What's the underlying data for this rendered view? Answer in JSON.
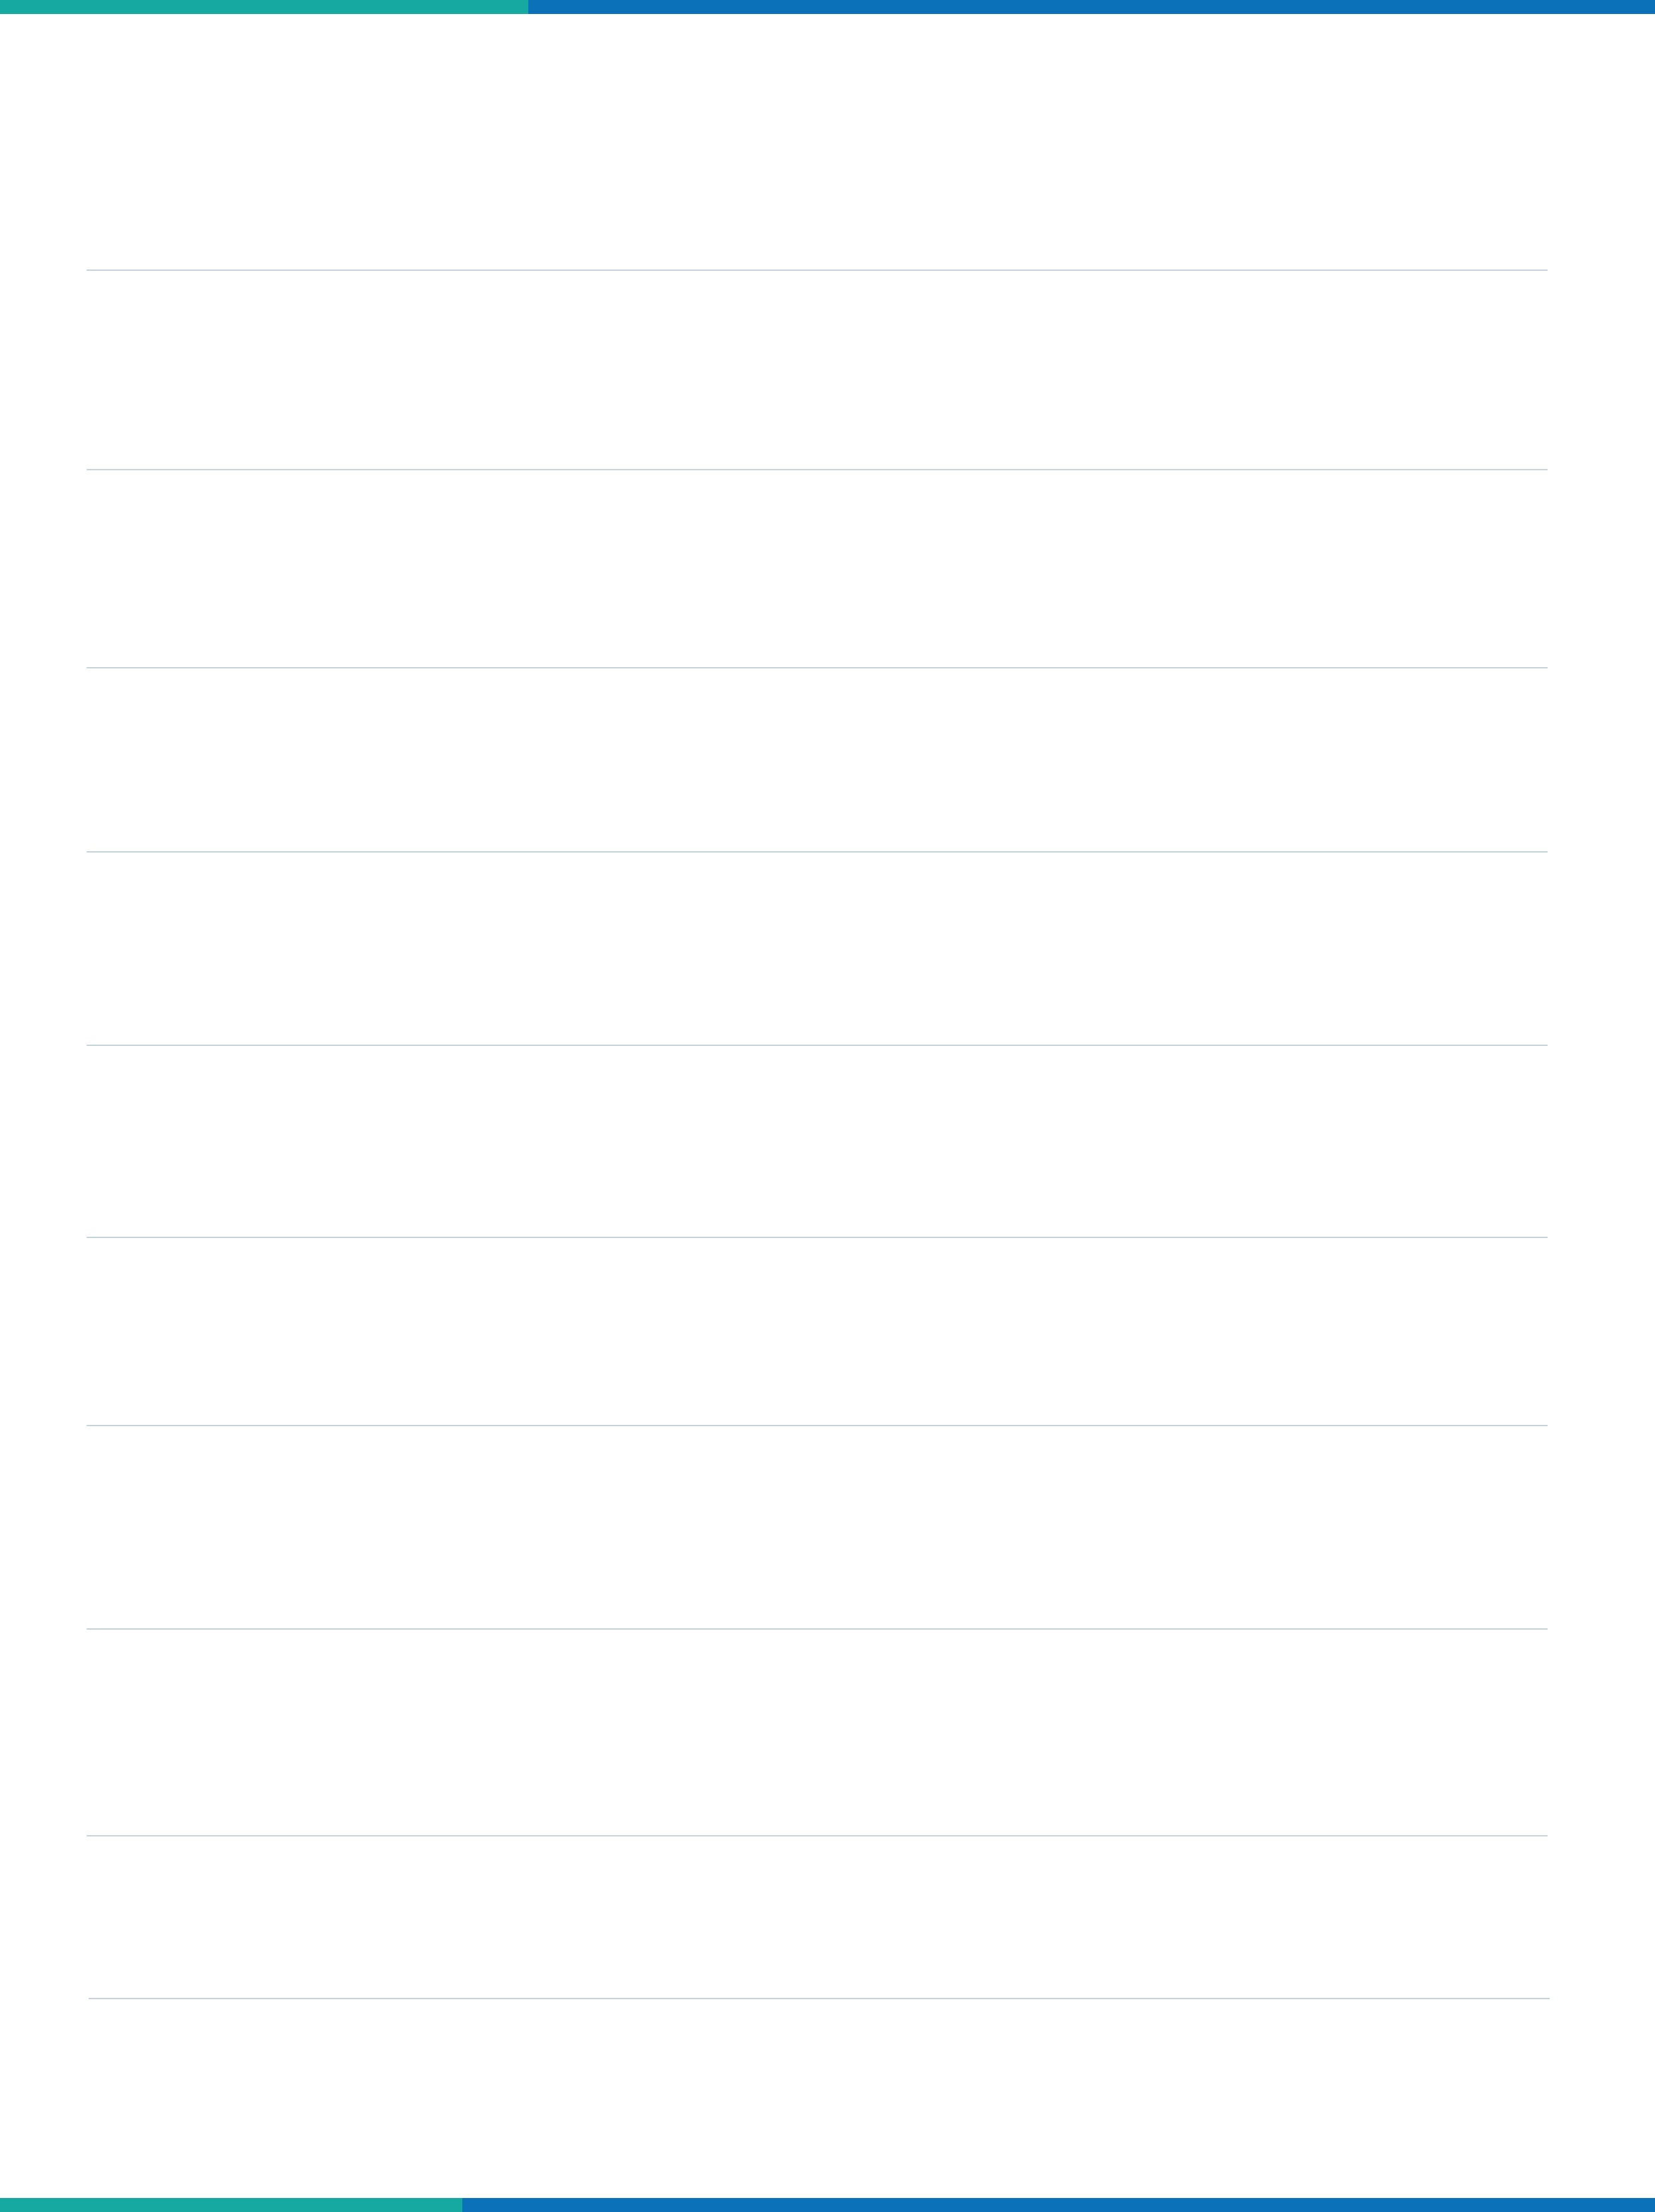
{
  "page": {
    "type": "lined-note-sheet",
    "line_count": 10
  },
  "colors": {
    "accent_teal": "#16a9a2",
    "accent_blue": "#0b72ba",
    "rule": "#c6d3d8",
    "background": "#ffffff"
  }
}
